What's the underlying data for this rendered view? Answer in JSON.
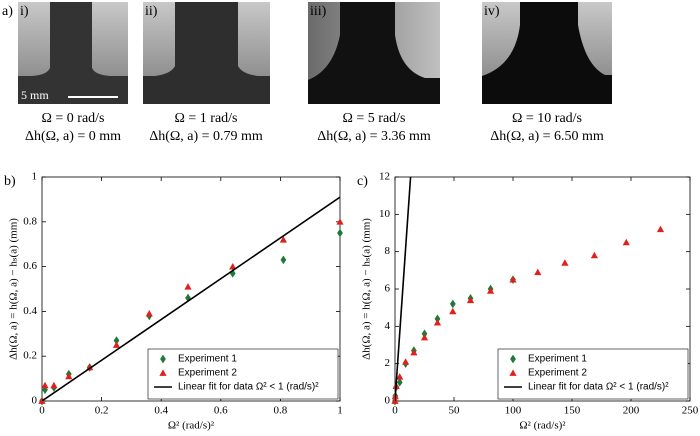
{
  "figure": {
    "panel_label": "a)",
    "scale_bar": "5 mm",
    "photos": [
      {
        "label": "i)",
        "omega": "Ω = 0 rad/s",
        "dh": "Δh(Ω, a) = 0 mm"
      },
      {
        "label": "ii)",
        "omega": "Ω = 1 rad/s",
        "dh": "Δh(Ω, a) = 0.79 mm"
      },
      {
        "label": "iii)",
        "omega": "Ω = 5 rad/s",
        "dh": "Δh(Ω, a) = 3.36 mm"
      },
      {
        "label": "iv)",
        "omega": "Ω = 10 rad/s",
        "dh": "Δh(Ω, a) = 6.50 mm"
      }
    ]
  },
  "chart_data": [
    {
      "type": "scatter",
      "panel_label": "b)",
      "x_label": "Ω² (rad/s)²",
      "y_label": "Δh(Ω, a) = h(Ω, a) − hₛ(a) (mm)",
      "xlim": [
        0,
        1
      ],
      "ylim": [
        0,
        1
      ],
      "xticks": [
        0,
        0.2,
        0.4,
        0.6,
        0.8,
        1
      ],
      "yticks": [
        0,
        0.2,
        0.4,
        0.6,
        0.8,
        1
      ],
      "legend": "lower right",
      "series": [
        {
          "name": "Experiment 1",
          "color": "#1f7a3a",
          "marker": "diamond",
          "x": [
            0,
            0.01,
            0.04,
            0.09,
            0.16,
            0.25,
            0.36,
            0.49,
            0.64,
            0.81,
            1
          ],
          "values": [
            0,
            0.05,
            0.06,
            0.12,
            0.15,
            0.27,
            0.38,
            0.46,
            0.57,
            0.63,
            0.75
          ]
        },
        {
          "name": "Experiment 2",
          "color": "#e0201b",
          "marker": "triangle",
          "x": [
            0,
            0.01,
            0.04,
            0.09,
            0.16,
            0.25,
            0.36,
            0.49,
            0.64,
            0.81,
            1
          ],
          "values": [
            0,
            0.07,
            0.07,
            0.11,
            0.15,
            0.25,
            0.39,
            0.51,
            0.6,
            0.72,
            0.8
          ]
        },
        {
          "name": "Linear fit for data Ω² < 1 (rad/s)²",
          "color": "#000000",
          "marker": "line",
          "x": [
            0,
            1
          ],
          "values": [
            0,
            0.91
          ]
        }
      ]
    },
    {
      "type": "scatter",
      "panel_label": "c)",
      "x_label": "Ω² (rad/s)²",
      "y_label": "Δh(Ω, a) = h(Ω, a) − hₛ(a) (mm)",
      "xlim": [
        0,
        250
      ],
      "ylim": [
        0,
        12
      ],
      "xticks": [
        0,
        50,
        100,
        150,
        200,
        250
      ],
      "yticks": [
        0,
        2,
        4,
        6,
        8,
        10,
        12
      ],
      "legend": "lower right",
      "series": [
        {
          "name": "Experiment 1",
          "color": "#1f7a3a",
          "marker": "diamond",
          "x": [
            0,
            0.25,
            1,
            4,
            9,
            16,
            25,
            36,
            49,
            64,
            81,
            100
          ],
          "values": [
            0,
            0.27,
            0.75,
            1.0,
            2.0,
            2.7,
            3.6,
            4.4,
            5.2,
            5.5,
            6.0,
            6.5
          ]
        },
        {
          "name": "Experiment 2",
          "color": "#e0201b",
          "marker": "triangle",
          "x": [
            0,
            0.25,
            1,
            4,
            9,
            16,
            25,
            36,
            49,
            64,
            81,
            100,
            121,
            144,
            169,
            196,
            225
          ],
          "values": [
            0,
            0.25,
            0.8,
            1.3,
            2.1,
            2.6,
            3.4,
            4.2,
            4.8,
            5.4,
            5.9,
            6.5,
            6.9,
            7.4,
            7.8,
            8.5,
            9.2
          ]
        },
        {
          "name": "Linear fit for data Ω² < 1 (rad/s)²",
          "color": "#000000",
          "marker": "line",
          "x": [
            0,
            13.2
          ],
          "values": [
            0,
            12
          ]
        }
      ]
    }
  ]
}
